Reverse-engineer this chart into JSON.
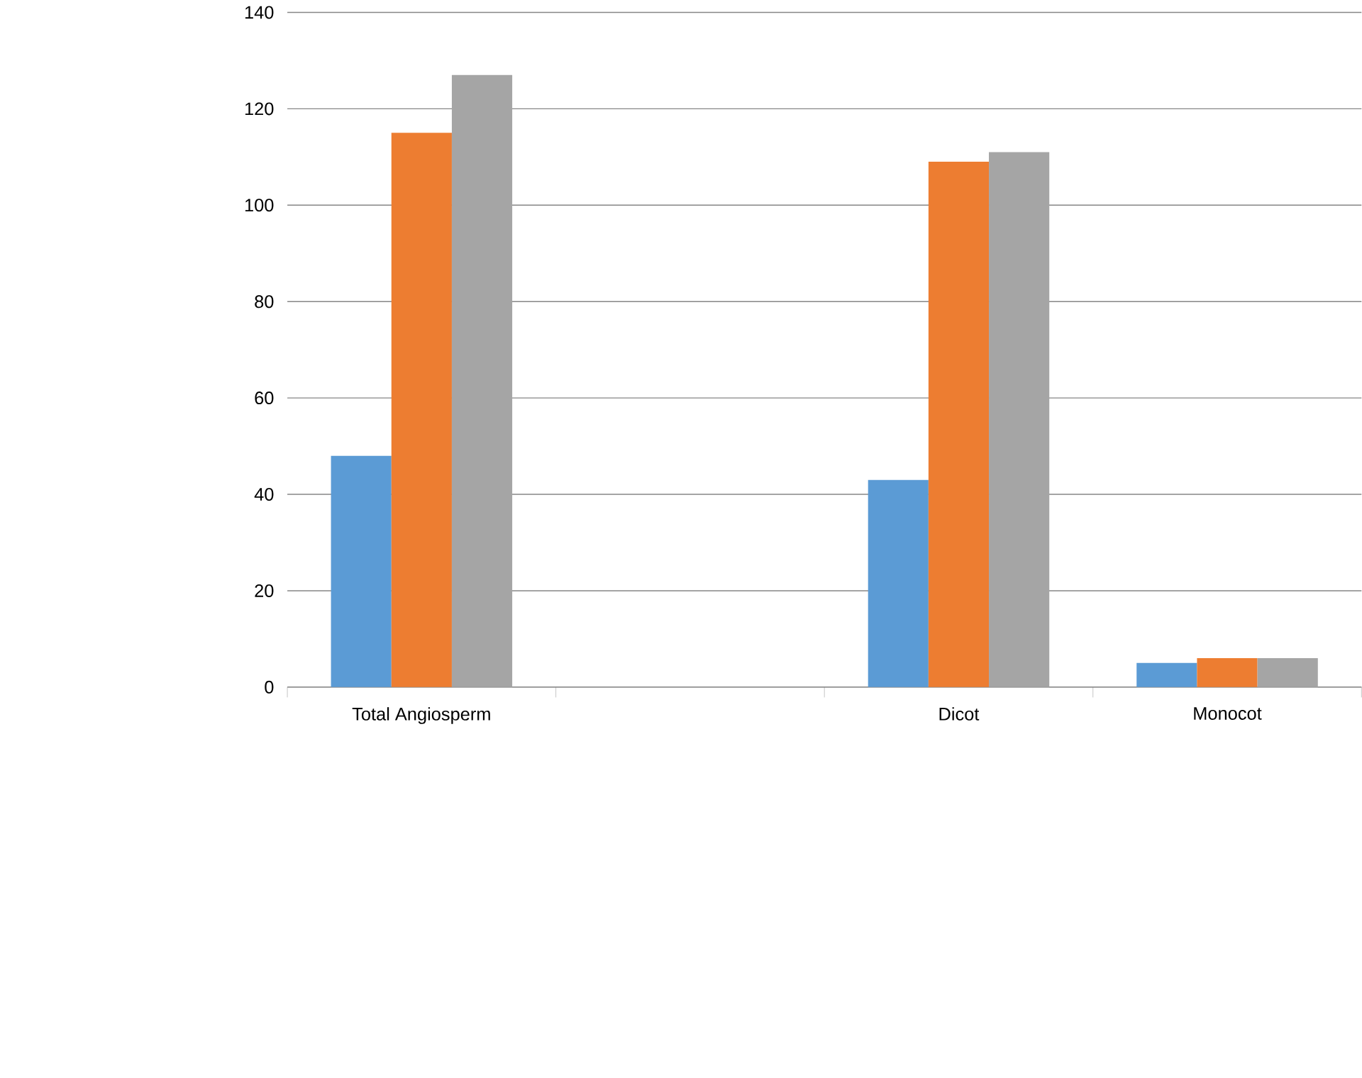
{
  "chart_data": {
    "type": "bar",
    "categories": [
      "Total Angiosperm",
      null,
      "Dicot",
      "Monocot"
    ],
    "series": [
      {
        "color": "#5b9bd5",
        "values": [
          48,
          null,
          43,
          5
        ]
      },
      {
        "color": "#ed7d31",
        "values": [
          115,
          null,
          109,
          6
        ]
      },
      {
        "color": "#a5a5a5",
        "values": [
          127,
          null,
          111,
          6
        ]
      }
    ],
    "ylim": [
      0,
      140
    ],
    "yticks": [
      0,
      20,
      40,
      60,
      80,
      100,
      120,
      140
    ],
    "grid": "y"
  }
}
